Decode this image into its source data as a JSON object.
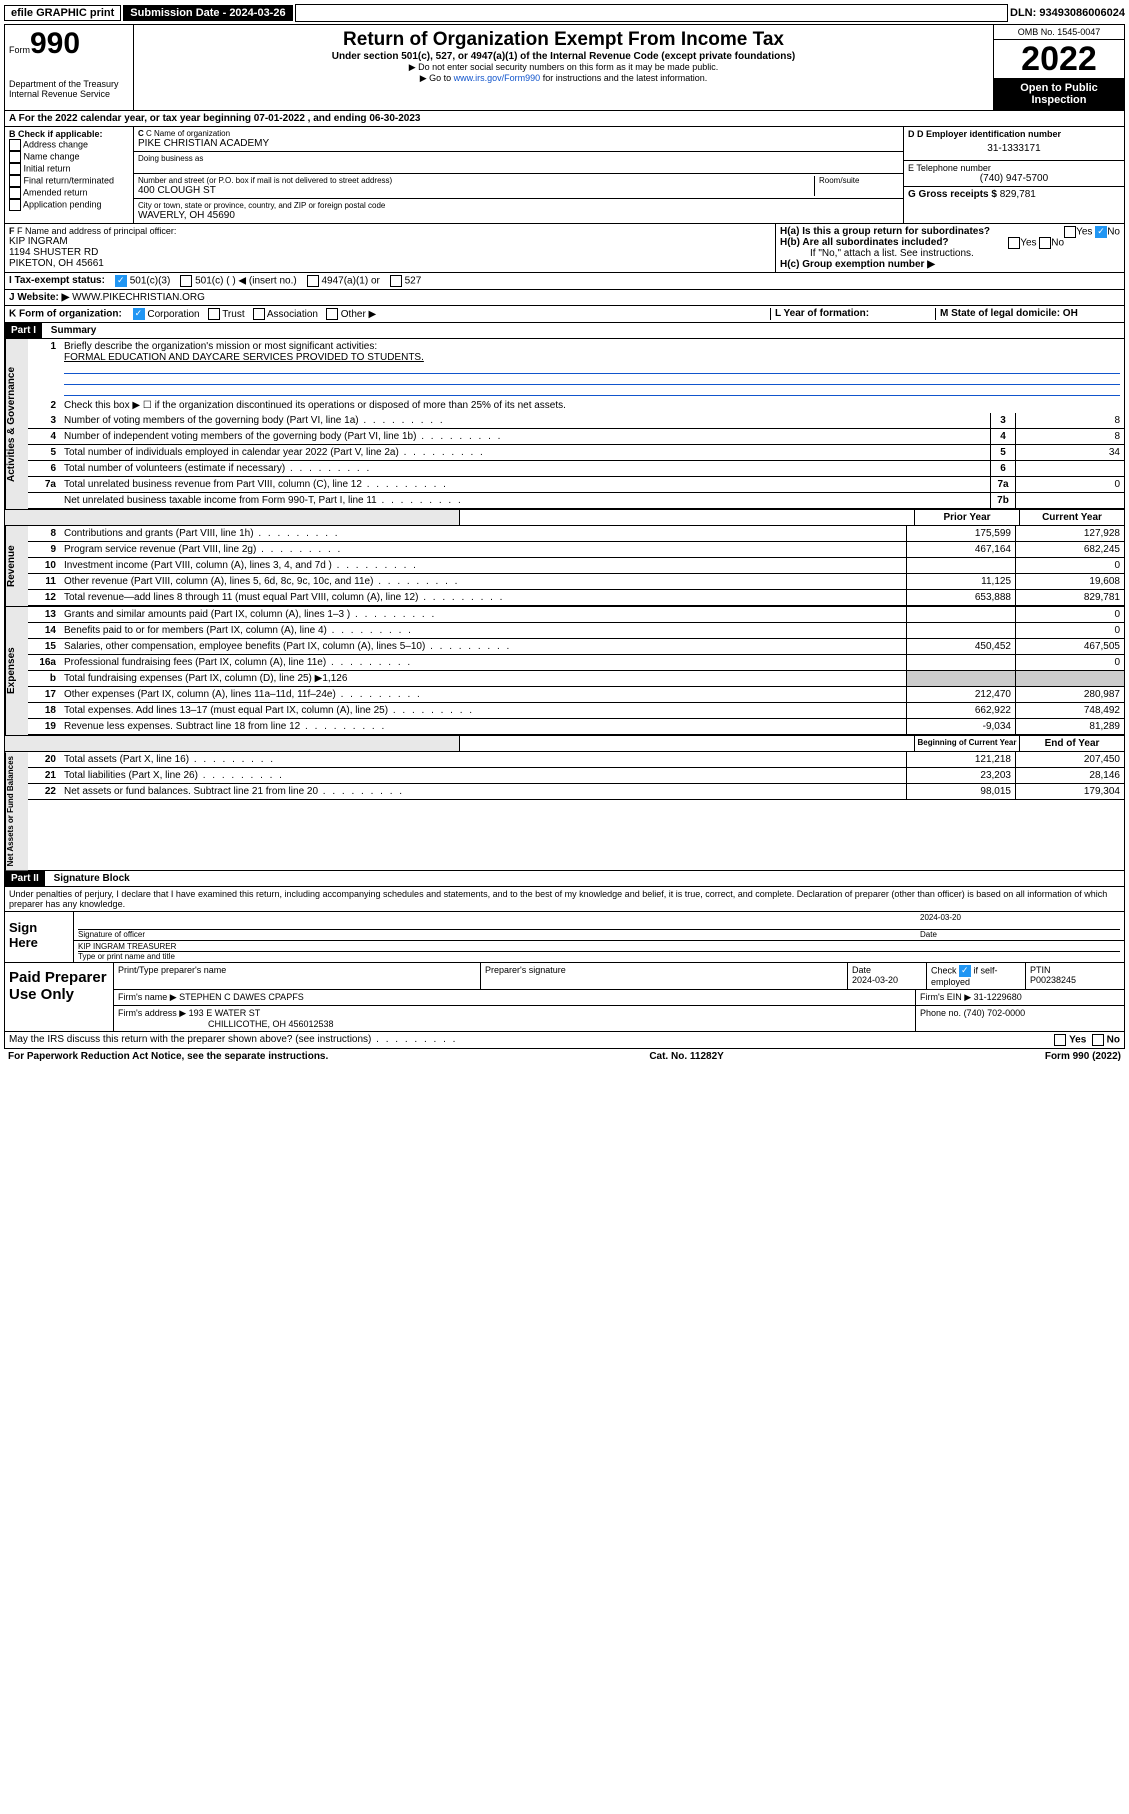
{
  "topbar": {
    "efile": "efile GRAPHIC print",
    "submission": "Submission Date - 2024-03-26",
    "dln": "DLN: 93493086006024"
  },
  "header": {
    "form_label": "Form",
    "form_num": "990",
    "dept": "Department of the Treasury\nInternal Revenue Service",
    "title": "Return of Organization Exempt From Income Tax",
    "sub": "Under section 501(c), 527, or 4947(a)(1) of the Internal Revenue Code (except private foundations)",
    "note1": "▶ Do not enter social security numbers on this form as it may be made public.",
    "note2_pre": "▶ Go to ",
    "note2_link": "www.irs.gov/Form990",
    "note2_post": " for instructions and the latest information.",
    "omb": "OMB No. 1545-0047",
    "year": "2022",
    "open": "Open to Public Inspection"
  },
  "rowA": "A For the 2022 calendar year, or tax year beginning 07-01-2022   , and ending 06-30-2023",
  "colB": {
    "hdr": "B Check if applicable:",
    "items": [
      "Address change",
      "Name change",
      "Initial return",
      "Final return/terminated",
      "Amended return",
      "Application pending"
    ]
  },
  "colC": {
    "name_lbl": "C Name of organization",
    "name": "PIKE CHRISTIAN ACADEMY",
    "dba_lbl": "Doing business as",
    "addr_lbl": "Number and street (or P.O. box if mail is not delivered to street address)",
    "room_lbl": "Room/suite",
    "addr": "400 CLOUGH ST",
    "city_lbl": "City or town, state or province, country, and ZIP or foreign postal code",
    "city": "WAVERLY, OH  45690"
  },
  "colD": {
    "ein_lbl": "D Employer identification number",
    "ein": "31-1333171",
    "tel_lbl": "E Telephone number",
    "tel": "(740) 947-5700",
    "gross_lbl": "G Gross receipts $",
    "gross": "829,781"
  },
  "rowF": {
    "lbl": "F Name and address of principal officer:",
    "name": "KIP INGRAM",
    "addr1": "1194 SHUSTER RD",
    "addr2": "PIKETON, OH  45661"
  },
  "rowH": {
    "ha": "H(a)  Is this a group return for subordinates?",
    "hb": "H(b)  Are all subordinates included?",
    "hb_note": "If \"No,\" attach a list. See instructions.",
    "hc": "H(c)  Group exemption number ▶",
    "yes": "Yes",
    "no": "No"
  },
  "rowI": "I  Tax-exempt status:",
  "rowI_opts": {
    "a": "501(c)(3)",
    "b": "501(c) (  ) ◀ (insert no.)",
    "c": "4947(a)(1) or",
    "d": "527"
  },
  "rowJ": {
    "lbl": "J  Website: ▶",
    "val": "WWW.PIKECHRISTIAN.ORG"
  },
  "rowK": {
    "lbl": "K Form of organization:",
    "opts": [
      "Corporation",
      "Trust",
      "Association",
      "Other ▶"
    ]
  },
  "rowL": "L Year of formation:",
  "rowM": "M State of legal domicile: OH",
  "part1": {
    "hdr": "Part I",
    "title": "Summary",
    "l1": "Briefly describe the organization's mission or most significant activities:",
    "l1v": "FORMAL EDUCATION AND DAYCARE SERVICES PROVIDED TO STUDENTS.",
    "l2": "Check this box ▶ ☐  if the organization discontinued its operations or disposed of more than 25% of its net assets.",
    "rows_act": [
      {
        "n": "3",
        "d": "Number of voting members of the governing body (Part VI, line 1a)",
        "b": "3",
        "v": "8"
      },
      {
        "n": "4",
        "d": "Number of independent voting members of the governing body (Part VI, line 1b)",
        "b": "4",
        "v": "8"
      },
      {
        "n": "5",
        "d": "Total number of individuals employed in calendar year 2022 (Part V, line 2a)",
        "b": "5",
        "v": "34"
      },
      {
        "n": "6",
        "d": "Total number of volunteers (estimate if necessary)",
        "b": "6",
        "v": ""
      },
      {
        "n": "7a",
        "d": "Total unrelated business revenue from Part VIII, column (C), line 12",
        "b": "7a",
        "v": "0"
      },
      {
        "n": "",
        "d": "Net unrelated business taxable income from Form 990-T, Part I, line 11",
        "b": "7b",
        "v": ""
      }
    ],
    "col_prior": "Prior Year",
    "col_current": "Current Year",
    "rows_rev": [
      {
        "n": "8",
        "d": "Contributions and grants (Part VIII, line 1h)",
        "p": "175,599",
        "c": "127,928"
      },
      {
        "n": "9",
        "d": "Program service revenue (Part VIII, line 2g)",
        "p": "467,164",
        "c": "682,245"
      },
      {
        "n": "10",
        "d": "Investment income (Part VIII, column (A), lines 3, 4, and 7d )",
        "p": "",
        "c": "0"
      },
      {
        "n": "11",
        "d": "Other revenue (Part VIII, column (A), lines 5, 6d, 8c, 9c, 10c, and 11e)",
        "p": "11,125",
        "c": "19,608"
      },
      {
        "n": "12",
        "d": "Total revenue—add lines 8 through 11 (must equal Part VIII, column (A), line 12)",
        "p": "653,888",
        "c": "829,781"
      }
    ],
    "rows_exp": [
      {
        "n": "13",
        "d": "Grants and similar amounts paid (Part IX, column (A), lines 1–3 )",
        "p": "",
        "c": "0"
      },
      {
        "n": "14",
        "d": "Benefits paid to or for members (Part IX, column (A), line 4)",
        "p": "",
        "c": "0"
      },
      {
        "n": "15",
        "d": "Salaries, other compensation, employee benefits (Part IX, column (A), lines 5–10)",
        "p": "450,452",
        "c": "467,505"
      },
      {
        "n": "16a",
        "d": "Professional fundraising fees (Part IX, column (A), line 11e)",
        "p": "",
        "c": "0"
      },
      {
        "n": "b",
        "d": "Total fundraising expenses (Part IX, column (D), line 25) ▶1,126",
        "p": "",
        "c": "",
        "noval": true
      },
      {
        "n": "17",
        "d": "Other expenses (Part IX, column (A), lines 11a–11d, 11f–24e)",
        "p": "212,470",
        "c": "280,987"
      },
      {
        "n": "18",
        "d": "Total expenses. Add lines 13–17 (must equal Part IX, column (A), line 25)",
        "p": "662,922",
        "c": "748,492"
      },
      {
        "n": "19",
        "d": "Revenue less expenses. Subtract line 18 from line 12",
        "p": "-9,034",
        "c": "81,289"
      }
    ],
    "col_begin": "Beginning of Current Year",
    "col_end": "End of Year",
    "rows_net": [
      {
        "n": "20",
        "d": "Total assets (Part X, line 16)",
        "p": "121,218",
        "c": "207,450"
      },
      {
        "n": "21",
        "d": "Total liabilities (Part X, line 26)",
        "p": "23,203",
        "c": "28,146"
      },
      {
        "n": "22",
        "d": "Net assets or fund balances. Subtract line 21 from line 20",
        "p": "98,015",
        "c": "179,304"
      }
    ]
  },
  "vtabs": {
    "act": "Activities & Governance",
    "rev": "Revenue",
    "exp": "Expenses",
    "net": "Net Assets or Fund Balances"
  },
  "part2": {
    "hdr": "Part II",
    "title": "Signature Block",
    "decl": "Under penalties of perjury, I declare that I have examined this return, including accompanying schedules and statements, and to the best of my knowledge and belief, it is true, correct, and complete. Declaration of preparer (other than officer) is based on all information of which preparer has any knowledge."
  },
  "sign": {
    "here": "Sign Here",
    "sig_lbl": "Signature of officer",
    "date_lbl": "Date",
    "date": "2024-03-20",
    "name": "KIP INGRAM TREASURER",
    "name_lbl": "Type or print name and title"
  },
  "paid": {
    "hdr": "Paid Preparer Use Only",
    "col1": "Print/Type preparer's name",
    "col2": "Preparer's signature",
    "col3_lbl": "Date",
    "col3": "2024-03-20",
    "col4_lbl": "Check",
    "col4_txt": "if self-employed",
    "col5_lbl": "PTIN",
    "col5": "P00238245",
    "firm_lbl": "Firm's name    ▶",
    "firm": "STEPHEN C DAWES CPAPFS",
    "ein_lbl": "Firm's EIN ▶",
    "ein": "31-1229680",
    "addr_lbl": "Firm's address ▶",
    "addr1": "193 E WATER ST",
    "addr2": "CHILLICOTHE, OH  456012538",
    "phone_lbl": "Phone no.",
    "phone": "(740) 702-0000"
  },
  "discuss": "May the IRS discuss this return with the preparer shown above? (see instructions)",
  "footer": {
    "left": "For Paperwork Reduction Act Notice, see the separate instructions.",
    "mid": "Cat. No. 11282Y",
    "right": "Form 990 (2022)"
  }
}
